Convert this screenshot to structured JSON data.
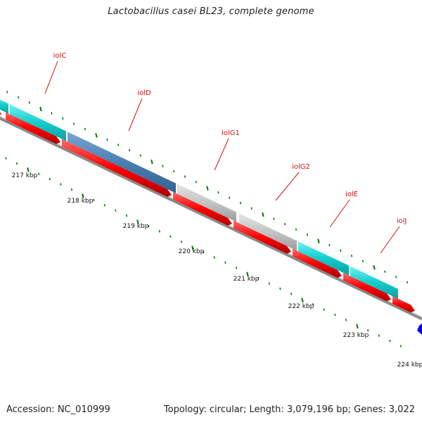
{
  "title": "Lactobacillus casei BL23, complete genome",
  "footer": {
    "accession": "Accession: NC_010999",
    "summary": "Topology: circular; Length: 3,079,196 bp; Genes: 3,022"
  },
  "genes": [
    {
      "name": "iolC",
      "color": "#14cccc"
    },
    {
      "name": "iolD",
      "color": "#4a7fb3"
    },
    {
      "name": "iolG1",
      "color": "#c0c0c0"
    },
    {
      "name": "iolG2",
      "color": "#c0c0c0"
    },
    {
      "name": "iolE",
      "color": "#14cccc"
    },
    {
      "name": "iolJ",
      "color": "#14cccc"
    }
  ],
  "ruler": [
    "217 kbp",
    "218 kbp",
    "219 kbp",
    "220 kbp",
    "221 kbp",
    "222 kbp",
    "223 kbp",
    "224 kbp"
  ],
  "colors": {
    "cds_strand": "#ff0000",
    "backbone": "#888888",
    "ticks": "#007700",
    "labels": "#cc1111",
    "other_feature": "#0000dd"
  }
}
